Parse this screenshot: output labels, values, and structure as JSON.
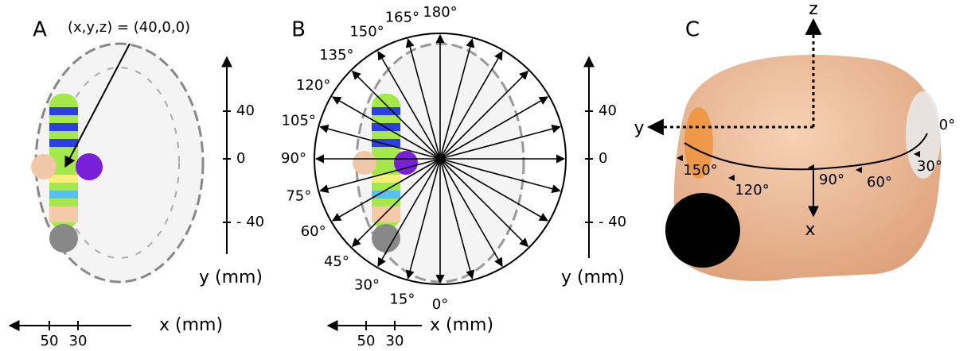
{
  "panels": [
    {
      "label": "A",
      "annotation": "(x,y,z) = (40,0,0)",
      "y_axis": {
        "title": "y (mm)",
        "ticks": [
          "40",
          "0",
          "- 40"
        ]
      },
      "x_axis": {
        "title": "x (mm)",
        "ticks": [
          "50",
          "30"
        ]
      }
    },
    {
      "label": "B",
      "angles": [
        "0°",
        "15°",
        "30°",
        "45°",
        "60°",
        "75°",
        "90°",
        "105°",
        "120°",
        "135°",
        "150°",
        "165°",
        "180°"
      ],
      "y_axis": {
        "title": "y (mm)",
        "ticks": [
          "40",
          "0",
          "- 40"
        ]
      },
      "x_axis": {
        "title": "x (mm)",
        "ticks": [
          "50",
          "30"
        ]
      }
    },
    {
      "label": "C",
      "axes": [
        "z",
        "y",
        "x"
      ],
      "angles": [
        "0°",
        "30°",
        "60°",
        "90°",
        "120°",
        "150°"
      ]
    }
  ]
}
